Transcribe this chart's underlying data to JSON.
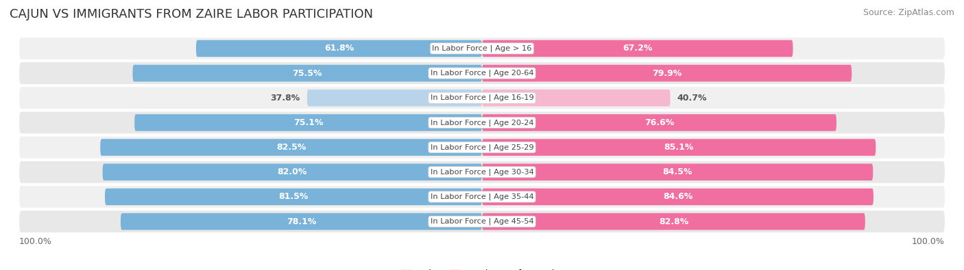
{
  "title": "CAJUN VS IMMIGRANTS FROM ZAIRE LABOR PARTICIPATION",
  "source": "Source: ZipAtlas.com",
  "categories": [
    "In Labor Force | Age > 16",
    "In Labor Force | Age 20-64",
    "In Labor Force | Age 16-19",
    "In Labor Force | Age 20-24",
    "In Labor Force | Age 25-29",
    "In Labor Force | Age 30-34",
    "In Labor Force | Age 35-44",
    "In Labor Force | Age 45-54"
  ],
  "cajun_values": [
    61.8,
    75.5,
    37.8,
    75.1,
    82.5,
    82.0,
    81.5,
    78.1
  ],
  "zaire_values": [
    67.2,
    79.9,
    40.7,
    76.6,
    85.1,
    84.5,
    84.6,
    82.8
  ],
  "cajun_color": "#7ab3d9",
  "cajun_color_light": "#b8d3ea",
  "zaire_color": "#f06fa0",
  "zaire_color_light": "#f5b8ce",
  "row_bg": "#e8e8e8",
  "max_val": 100.0,
  "bar_height": 0.68,
  "legend_cajun": "Cajun",
  "legend_zaire": "Immigrants from Zaire",
  "title_fontsize": 13,
  "source_fontsize": 9,
  "label_fontsize": 9,
  "cat_fontsize": 8.2,
  "bottom_label": "100.0%"
}
